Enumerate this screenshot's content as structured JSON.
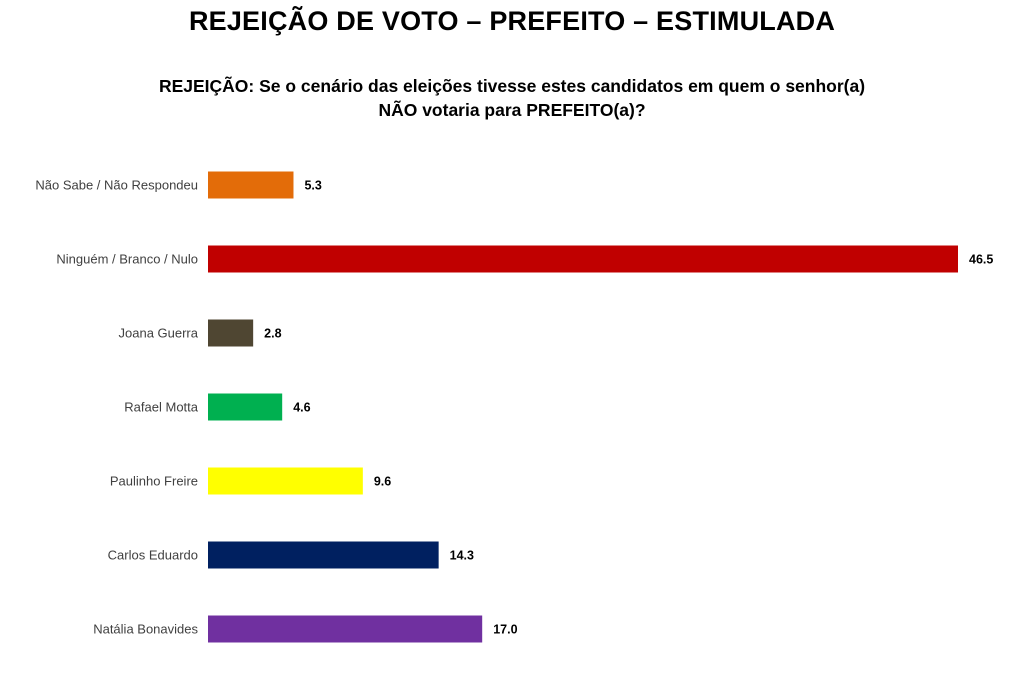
{
  "chart_data": {
    "type": "bar",
    "orientation": "horizontal",
    "title": "REJEIÇÃO DE VOTO – PREFEITO – ESTIMULADA",
    "subtitle_lines": [
      "REJEIÇÃO: Se o cenário das eleições tivesse estes candidatos em quem o senhor(a)",
      "NÃO votaria para PREFEITO(a)?"
    ],
    "categories": [
      "Não Sabe / Não Respondeu",
      "Ninguém / Branco / Nulo",
      "Joana Guerra",
      "Rafael Motta",
      "Paulinho Freire",
      "Carlos Eduardo",
      "Natália Bonavides"
    ],
    "values": [
      5.3,
      46.5,
      2.8,
      4.6,
      9.6,
      14.3,
      17.0
    ],
    "value_labels": [
      "5.3",
      "46.5",
      "2.8",
      "4.6",
      "9.6",
      "14.3",
      "17.0"
    ],
    "colors": [
      "#e36c09",
      "#c00000",
      "#4f4632",
      "#00b050",
      "#ffff00",
      "#002060",
      "#7030a0"
    ],
    "xlim": [
      0,
      46.5
    ],
    "grid": false,
    "legend": "none"
  }
}
